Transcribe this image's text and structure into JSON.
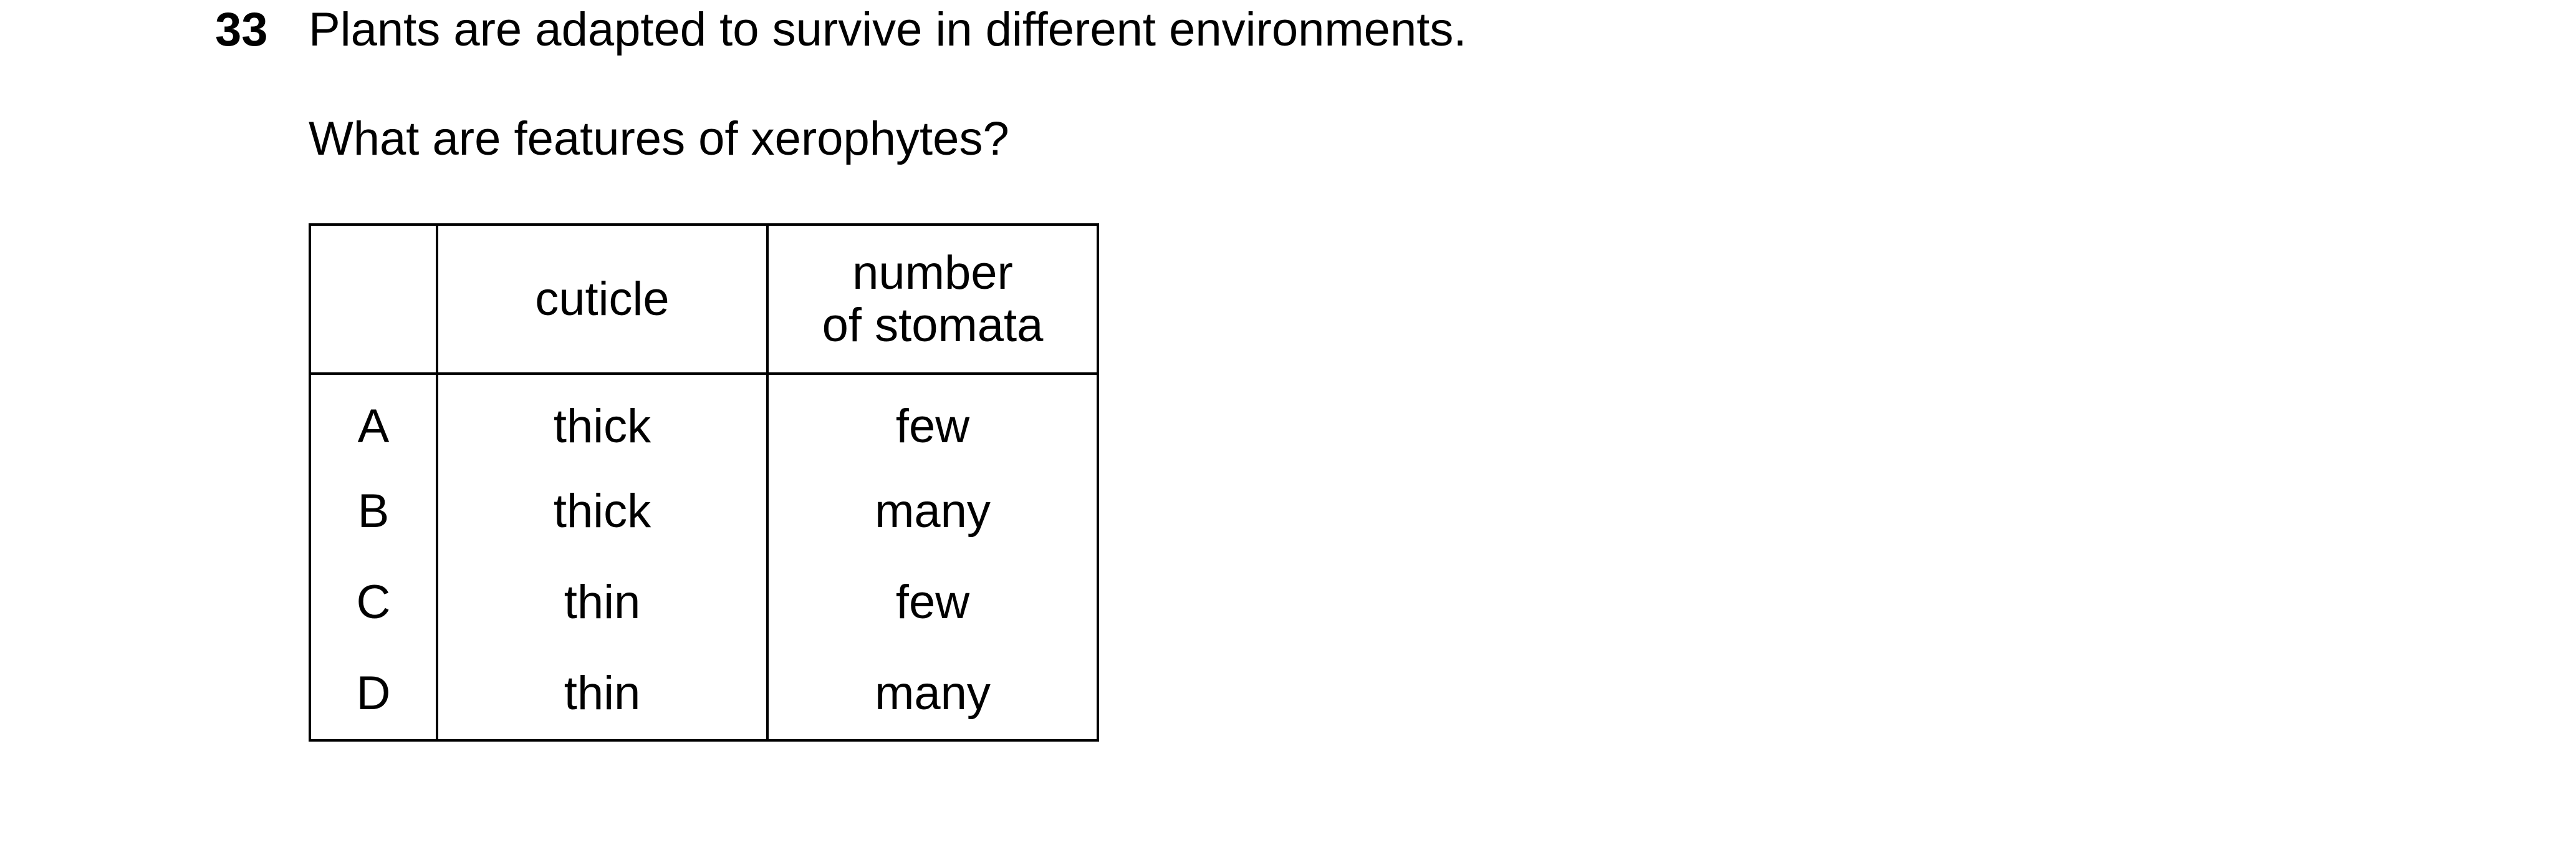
{
  "question": {
    "number": "33",
    "stem": "Plants are adapted to survive in different environments.",
    "prompt": "What are features of xerophytes?"
  },
  "table": {
    "headers": [
      "",
      "cuticle",
      "number\nof stomata"
    ],
    "header_cuticle": "cuticle",
    "header_stomata_line1": "number",
    "header_stomata_line2": "of stomata",
    "rows": [
      {
        "letter": "A",
        "cuticle": "thick",
        "stomata": "few"
      },
      {
        "letter": "B",
        "cuticle": "thick",
        "stomata": "many"
      },
      {
        "letter": "C",
        "cuticle": "thin",
        "stomata": "few"
      },
      {
        "letter": "D",
        "cuticle": "thin",
        "stomata": "many"
      }
    ]
  }
}
